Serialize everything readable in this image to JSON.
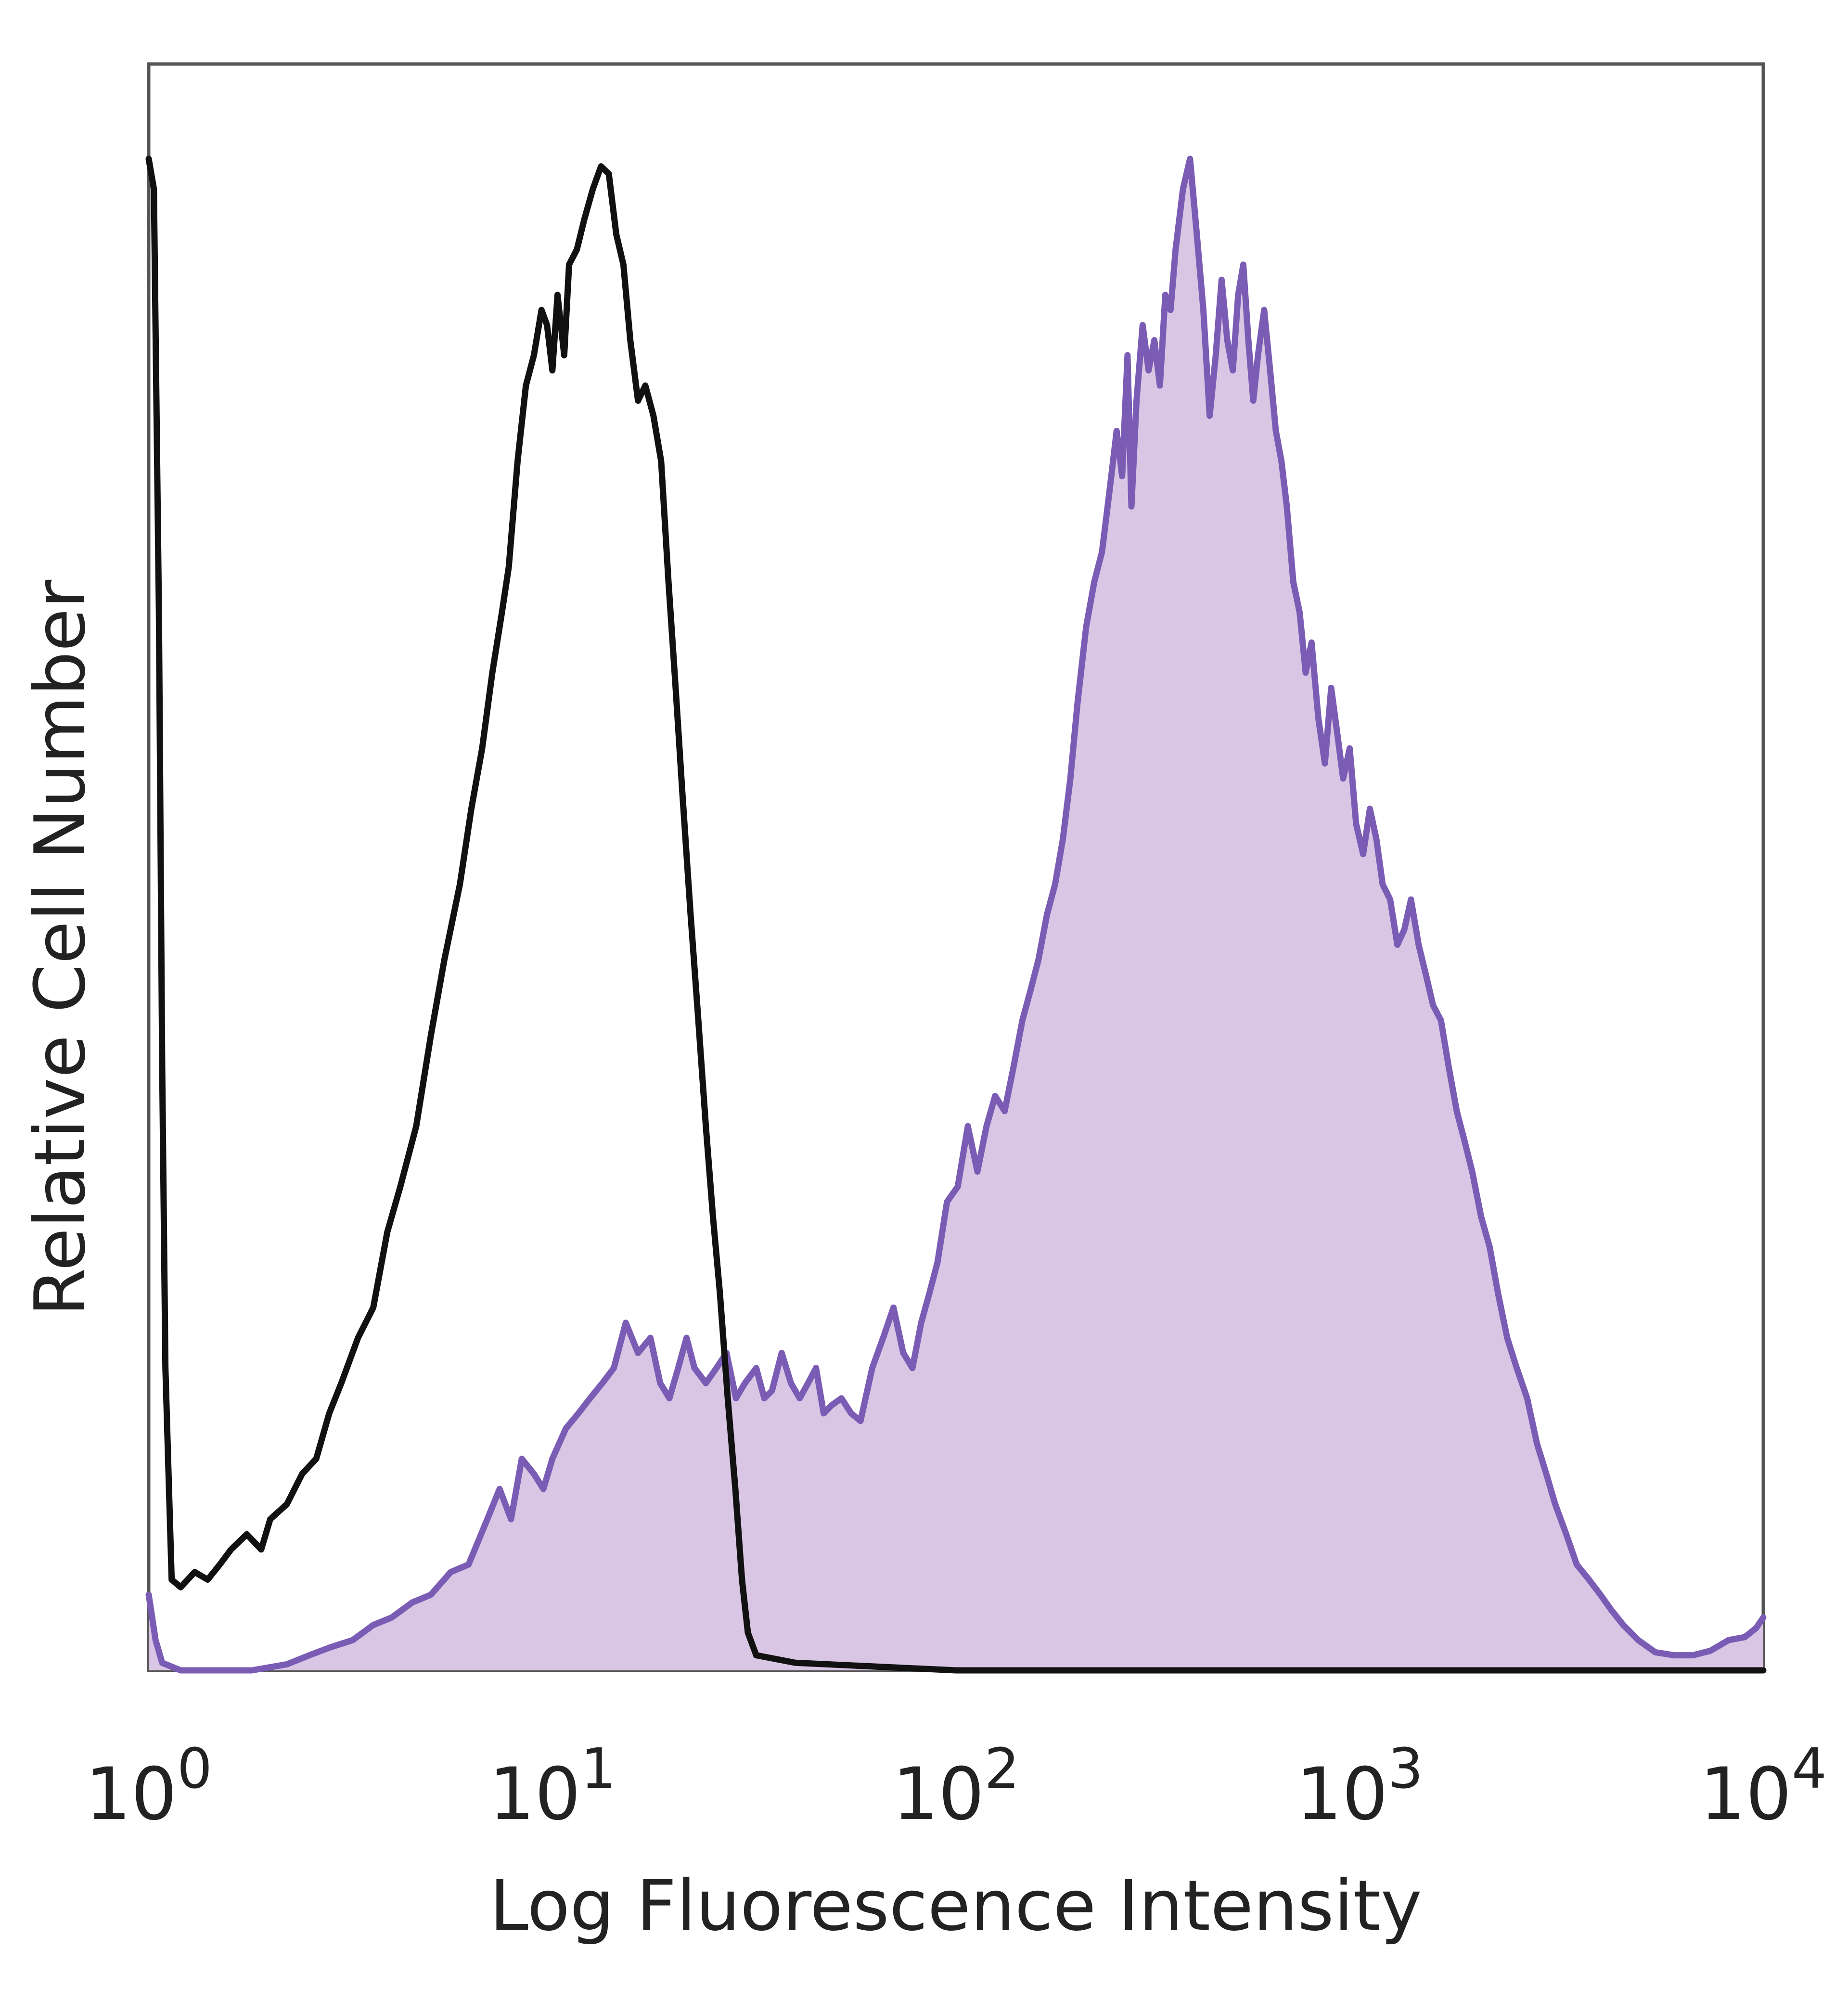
{
  "chart_data": {
    "type": "area",
    "title": "",
    "xlabel": "Log Fluorescence Intensity",
    "ylabel": "Relative Cell Number",
    "x_scale": "log",
    "xlim": [
      1,
      10000
    ],
    "ylim": [
      0,
      100
    ],
    "x_ticks": [
      {
        "value": 1,
        "base": "10",
        "exp": "0"
      },
      {
        "value": 10,
        "base": "10",
        "exp": "1"
      },
      {
        "value": 100,
        "base": "10",
        "exp": "2"
      },
      {
        "value": 1000,
        "base": "10",
        "exp": "3"
      },
      {
        "value": 10000,
        "base": "10",
        "exp": "4"
      }
    ],
    "grid": false,
    "legend": "none",
    "series": [
      {
        "style": "line",
        "color": "#111111",
        "points": [
          [
            1.0,
            100
          ],
          [
            1.03,
            98
          ],
          [
            1.06,
            70
          ],
          [
            1.08,
            40
          ],
          [
            1.1,
            20
          ],
          [
            1.14,
            6
          ],
          [
            1.2,
            5.5
          ],
          [
            1.3,
            6.5
          ],
          [
            1.4,
            6
          ],
          [
            1.5,
            7
          ],
          [
            1.6,
            8
          ],
          [
            1.75,
            9
          ],
          [
            1.9,
            8
          ],
          [
            2.0,
            10
          ],
          [
            2.2,
            11
          ],
          [
            2.4,
            13
          ],
          [
            2.6,
            14
          ],
          [
            2.8,
            17
          ],
          [
            3.0,
            19
          ],
          [
            3.3,
            22
          ],
          [
            3.6,
            24
          ],
          [
            3.9,
            29
          ],
          [
            4.2,
            32
          ],
          [
            4.6,
            36
          ],
          [
            5.0,
            42
          ],
          [
            5.4,
            47
          ],
          [
            5.9,
            52
          ],
          [
            6.3,
            57
          ],
          [
            6.7,
            61
          ],
          [
            7.1,
            66
          ],
          [
            7.5,
            70
          ],
          [
            7.8,
            73
          ],
          [
            8.2,
            80
          ],
          [
            8.6,
            85
          ],
          [
            9.0,
            87
          ],
          [
            9.4,
            90
          ],
          [
            9.7,
            89
          ],
          [
            10.0,
            86
          ],
          [
            10.3,
            91
          ],
          [
            10.7,
            87
          ],
          [
            11.0,
            93
          ],
          [
            11.5,
            94
          ],
          [
            12.0,
            96
          ],
          [
            12.6,
            98
          ],
          [
            13.2,
            99.5
          ],
          [
            13.8,
            99
          ],
          [
            14.4,
            95
          ],
          [
            15.0,
            93
          ],
          [
            15.6,
            88
          ],
          [
            16.3,
            84
          ],
          [
            17.0,
            85
          ],
          [
            17.8,
            83
          ],
          [
            18.6,
            80
          ],
          [
            19.4,
            72
          ],
          [
            20.2,
            65
          ],
          [
            21.0,
            58
          ],
          [
            22.0,
            50
          ],
          [
            23.0,
            43
          ],
          [
            24.0,
            36
          ],
          [
            25.0,
            30
          ],
          [
            26.0,
            25
          ],
          [
            27.2,
            18
          ],
          [
            28.4,
            12
          ],
          [
            29.5,
            6
          ],
          [
            30.5,
            2.5
          ],
          [
            32,
            1
          ],
          [
            40,
            0.5
          ],
          [
            100,
            0
          ],
          [
            1000,
            0
          ],
          [
            10000,
            0
          ]
        ]
      },
      {
        "style": "filled",
        "color": "#7b5cb5",
        "fill": "#d9c6e4",
        "points": [
          [
            1.0,
            5
          ],
          [
            1.04,
            2
          ],
          [
            1.08,
            0.5
          ],
          [
            1.2,
            0
          ],
          [
            1.5,
            0
          ],
          [
            1.8,
            0
          ],
          [
            2.2,
            0.4
          ],
          [
            2.5,
            1
          ],
          [
            2.8,
            1.5
          ],
          [
            3.2,
            2
          ],
          [
            3.6,
            3
          ],
          [
            4.0,
            3.5
          ],
          [
            4.5,
            4.5
          ],
          [
            5.0,
            5
          ],
          [
            5.6,
            6.5
          ],
          [
            6.2,
            7
          ],
          [
            6.9,
            10
          ],
          [
            7.4,
            12
          ],
          [
            7.9,
            10
          ],
          [
            8.4,
            14
          ],
          [
            9.0,
            13
          ],
          [
            9.5,
            12
          ],
          [
            10.0,
            14
          ],
          [
            10.8,
            16
          ],
          [
            11.6,
            17
          ],
          [
            12.4,
            18
          ],
          [
            13.3,
            19
          ],
          [
            14.2,
            20
          ],
          [
            15.2,
            23
          ],
          [
            16.3,
            21
          ],
          [
            17.5,
            22
          ],
          [
            18.5,
            19
          ],
          [
            19.5,
            18
          ],
          [
            20.5,
            20
          ],
          [
            21.5,
            22
          ],
          [
            22.5,
            20
          ],
          [
            24,
            19
          ],
          [
            25.5,
            20
          ],
          [
            27,
            21
          ],
          [
            28.5,
            18
          ],
          [
            30,
            19
          ],
          [
            32,
            20
          ],
          [
            33.5,
            18
          ],
          [
            35,
            18.5
          ],
          [
            37,
            21
          ],
          [
            39,
            19
          ],
          [
            41,
            18
          ],
          [
            43,
            19
          ],
          [
            45,
            20
          ],
          [
            47,
            17
          ],
          [
            49,
            17.5
          ],
          [
            52,
            18
          ],
          [
            55,
            17
          ],
          [
            58,
            16.5
          ],
          [
            62,
            20
          ],
          [
            66,
            22
          ],
          [
            70,
            24
          ],
          [
            74,
            21
          ],
          [
            78,
            20
          ],
          [
            82,
            23
          ],
          [
            86,
            25
          ],
          [
            90,
            27
          ],
          [
            95,
            31
          ],
          [
            101,
            32
          ],
          [
            107,
            36
          ],
          [
            113,
            33
          ],
          [
            119,
            36
          ],
          [
            125,
            38
          ],
          [
            132,
            37
          ],
          [
            139,
            40
          ],
          [
            146,
            43
          ],
          [
            153,
            45
          ],
          [
            160,
            47
          ],
          [
            168,
            50
          ],
          [
            176,
            52
          ],
          [
            184,
            55
          ],
          [
            192,
            59
          ],
          [
            200,
            64
          ],
          [
            210,
            69
          ],
          [
            220,
            72
          ],
          [
            230,
            74
          ],
          [
            240,
            78
          ],
          [
            250,
            82
          ],
          [
            258,
            79
          ],
          [
            266,
            87
          ],
          [
            272,
            77
          ],
          [
            280,
            84
          ],
          [
            290,
            89
          ],
          [
            300,
            86
          ],
          [
            310,
            88
          ],
          [
            320,
            85
          ],
          [
            330,
            91
          ],
          [
            340,
            90
          ],
          [
            350,
            94
          ],
          [
            365,
            98
          ],
          [
            380,
            100
          ],
          [
            395,
            95
          ],
          [
            410,
            90
          ],
          [
            425,
            83
          ],
          [
            440,
            87
          ],
          [
            455,
            92
          ],
          [
            470,
            88
          ],
          [
            485,
            86
          ],
          [
            500,
            91
          ],
          [
            515,
            93
          ],
          [
            530,
            88
          ],
          [
            545,
            84
          ],
          [
            560,
            87
          ],
          [
            580,
            90
          ],
          [
            600,
            86
          ],
          [
            620,
            82
          ],
          [
            640,
            80
          ],
          [
            660,
            77
          ],
          [
            685,
            72
          ],
          [
            710,
            70
          ],
          [
            735,
            66
          ],
          [
            760,
            68
          ],
          [
            790,
            63
          ],
          [
            820,
            60
          ],
          [
            850,
            65
          ],
          [
            880,
            62
          ],
          [
            910,
            59
          ],
          [
            945,
            61
          ],
          [
            980,
            56
          ],
          [
            1020,
            54
          ],
          [
            1060,
            57
          ],
          [
            1100,
            55
          ],
          [
            1140,
            52
          ],
          [
            1190,
            51
          ],
          [
            1240,
            48
          ],
          [
            1290,
            49
          ],
          [
            1340,
            51
          ],
          [
            1400,
            48
          ],
          [
            1460,
            46
          ],
          [
            1520,
            44
          ],
          [
            1590,
            43
          ],
          [
            1660,
            40
          ],
          [
            1740,
            37
          ],
          [
            1820,
            35
          ],
          [
            1900,
            33
          ],
          [
            2000,
            30
          ],
          [
            2100,
            28
          ],
          [
            2200,
            25
          ],
          [
            2320,
            22
          ],
          [
            2450,
            20
          ],
          [
            2600,
            18
          ],
          [
            2750,
            15
          ],
          [
            2900,
            13
          ],
          [
            3050,
            11
          ],
          [
            3250,
            9
          ],
          [
            3450,
            7
          ],
          [
            3700,
            6
          ],
          [
            3950,
            5
          ],
          [
            4200,
            4
          ],
          [
            4500,
            3
          ],
          [
            4900,
            2
          ],
          [
            5400,
            1.2
          ],
          [
            6000,
            1
          ],
          [
            6700,
            1
          ],
          [
            7400,
            1.3
          ],
          [
            8200,
            2
          ],
          [
            9000,
            2.2
          ],
          [
            9600,
            2.8
          ],
          [
            10000,
            3.5
          ]
        ]
      }
    ]
  }
}
